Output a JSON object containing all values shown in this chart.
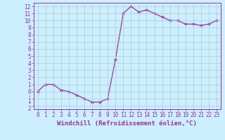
{
  "x": [
    0,
    1,
    2,
    3,
    4,
    5,
    6,
    7,
    8,
    9,
    10,
    11,
    12,
    13,
    14,
    15,
    16,
    17,
    18,
    19,
    20,
    21,
    22,
    23
  ],
  "y": [
    0,
    1,
    1,
    0.2,
    0,
    -0.5,
    -1,
    -1.5,
    -1.5,
    -1,
    4.5,
    11,
    12,
    11.2,
    11.5,
    11,
    10.5,
    10,
    10,
    9.5,
    9.5,
    9.3,
    9.5,
    10
  ],
  "line_color": "#993399",
  "marker": "D",
  "marker_size": 2.0,
  "line_width": 0.9,
  "background_color": "#cceeff",
  "grid_color": "#aacccc",
  "xlabel": "Windchill (Refroidissement éolien,°C)",
  "xlabel_fontsize": 6.5,
  "xlim": [
    -0.5,
    23.5
  ],
  "ylim": [
    -2.5,
    12.5
  ],
  "xticks": [
    0,
    1,
    2,
    3,
    4,
    5,
    6,
    7,
    8,
    9,
    10,
    11,
    12,
    13,
    14,
    15,
    16,
    17,
    18,
    19,
    20,
    21,
    22,
    23
  ],
  "yticks": [
    -2,
    -1,
    0,
    1,
    2,
    3,
    4,
    5,
    6,
    7,
    8,
    9,
    10,
    11,
    12
  ],
  "tick_fontsize": 5.5,
  "tick_color": "#993399",
  "label_color": "#993399",
  "spine_color": "#993399"
}
